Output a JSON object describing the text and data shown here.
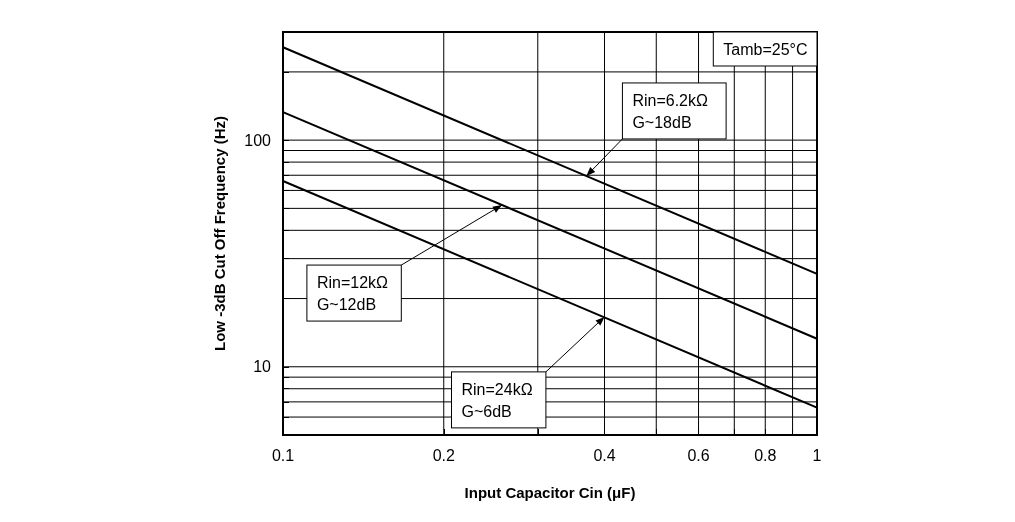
{
  "chart_data": {
    "type": "line",
    "xlabel": "Input Capacitor Cin (μF)",
    "ylabel": "Low -3dB Cut Off Frequency (Hz)",
    "log": "xy",
    "x": [
      0.1,
      1
    ],
    "series": [
      {
        "color": "#000000",
        "values": [
          257,
          25.7
        ]
      },
      {
        "color": "#000000",
        "values": [
          133,
          13.3
        ]
      },
      {
        "color": "#000000",
        "values": [
          66,
          6.6
        ]
      }
    ],
    "xlim": [
      0.1,
      1
    ],
    "xticks": [
      0.1,
      0.2,
      {
        "value": 0.3,
        "label": null
      },
      0.4,
      {
        "value": 0.5,
        "label": null
      },
      0.6,
      {
        "value": 0.7,
        "label": null
      },
      0.8,
      {
        "value": 0.9,
        "label": null
      },
      1
    ],
    "ylim": [
      5,
      300
    ],
    "yticks": [
      {
        "value": 5,
        "label": null
      },
      {
        "value": 6,
        "label": null
      },
      {
        "value": 7,
        "label": null
      },
      {
        "value": 8,
        "label": null
      },
      {
        "value": 9,
        "label": null
      },
      10,
      {
        "value": 20,
        "label": null
      },
      {
        "value": 30,
        "label": null
      },
      {
        "value": 40,
        "label": null
      },
      {
        "value": 50,
        "label": null
      },
      {
        "value": 60,
        "label": null
      },
      {
        "value": 70,
        "label": null
      },
      {
        "value": 80,
        "label": null
      },
      {
        "value": 90,
        "label": null
      },
      100,
      {
        "value": 200,
        "label": null
      },
      {
        "value": 300,
        "label": null
      }
    ],
    "grid": true,
    "marker": "none",
    "line_style": "solid",
    "annotations": [
      "Tamb=25°C",
      {
        "text": "Rin=6.2kΩ\nG~18dB",
        "x": 0.37,
        "y": 69.5
      },
      {
        "text": "Rin=12kΩ\nG~12dB",
        "x": 0.257,
        "y": 51.7
      },
      {
        "text": "Rin=24kΩ\nG~6dB",
        "x": 0.4,
        "y": 16.6
      }
    ]
  }
}
